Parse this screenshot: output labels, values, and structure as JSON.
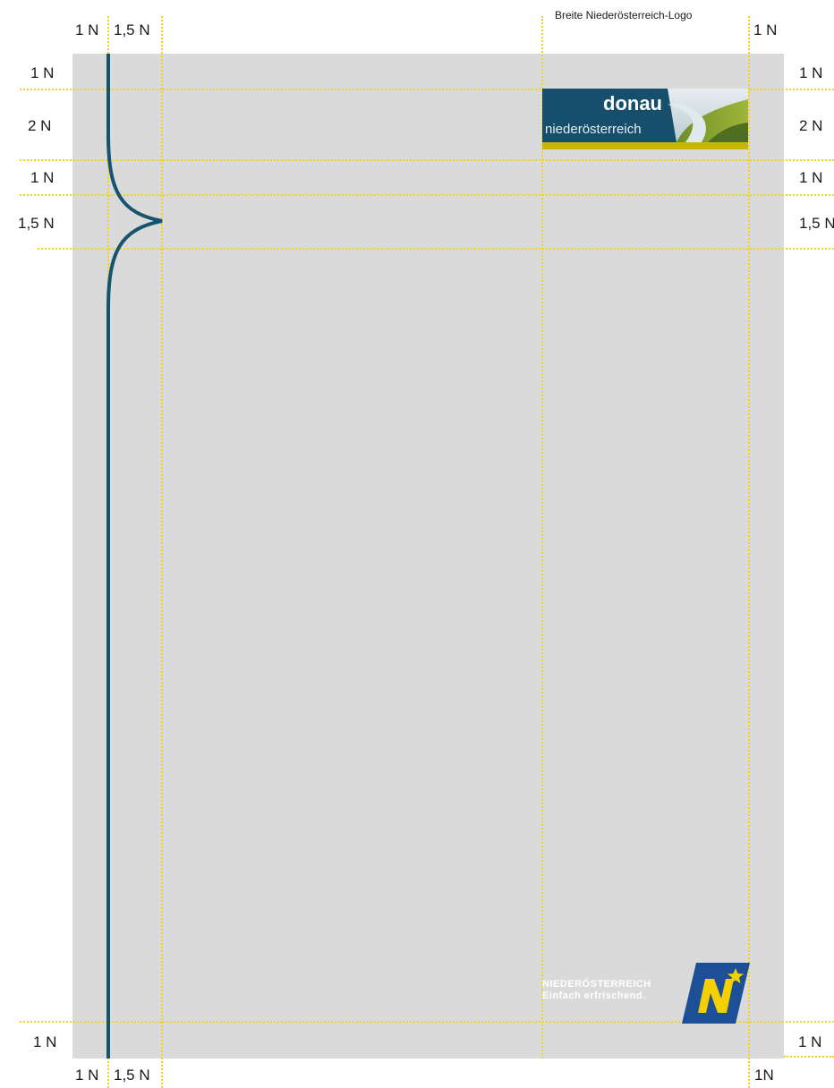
{
  "labels": {
    "one_n": "1 N",
    "one_n_alt": "1N",
    "one_half_n": "1,5 N",
    "two_n": "2 N",
    "one_half_n_cut": "1,5 N"
  },
  "caption": "Breite Niederösterreich-Logo",
  "donau_logo": {
    "word": "donau",
    "sub": "niederösterreich"
  },
  "noe_logo": {
    "line1": "NIEDERÖSTERREICH",
    "line2": "Einfach erfrischend.",
    "badge": "N"
  },
  "colors": {
    "page": "#dadada",
    "guide": "#f2d21b",
    "curve": "#15536e",
    "donau_blue": "#164f6b",
    "donau_yellow": "#c9b50e",
    "noe_blue": "#1d4f96",
    "noe_yellow": "#f4d000"
  }
}
